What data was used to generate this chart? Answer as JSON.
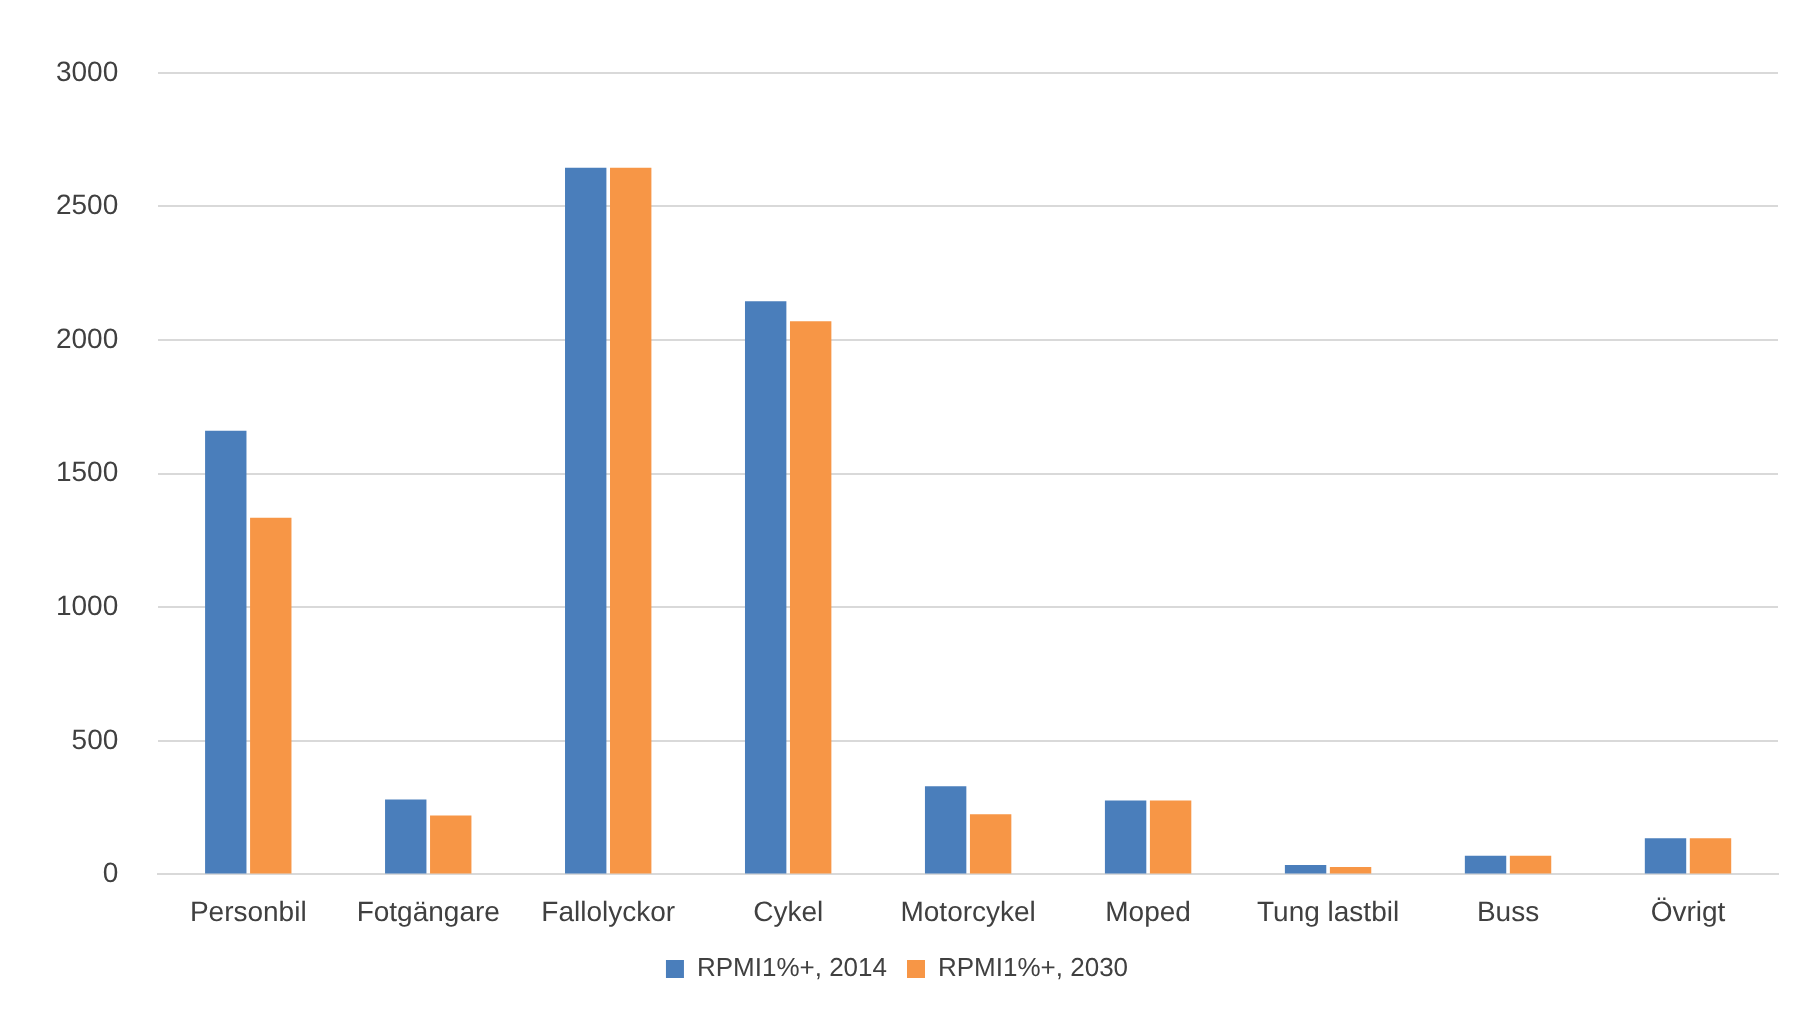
{
  "chart_data": {
    "type": "bar",
    "categories": [
      "Personbil",
      "Fotgängare",
      "Fallolyckor",
      "Cykel",
      "Motorcykel",
      "Moped",
      "Tung lastbil",
      "Buss",
      "Övrigt"
    ],
    "series": [
      {
        "name": "RPMI1%+, 2014",
        "color": "#4a7ebb",
        "values": [
          1660,
          280,
          2645,
          2145,
          330,
          277,
          35,
          70,
          135
        ]
      },
      {
        "name": "RPMI1%+, 2030",
        "color": "#f79646",
        "values": [
          1335,
          220,
          2645,
          2070,
          225,
          277,
          28,
          70,
          135
        ]
      }
    ],
    "ylim": [
      0,
      3000
    ],
    "yticks": [
      0,
      500,
      1000,
      1500,
      2000,
      2500,
      3000
    ],
    "grid": "y",
    "legend": "bottom"
  }
}
